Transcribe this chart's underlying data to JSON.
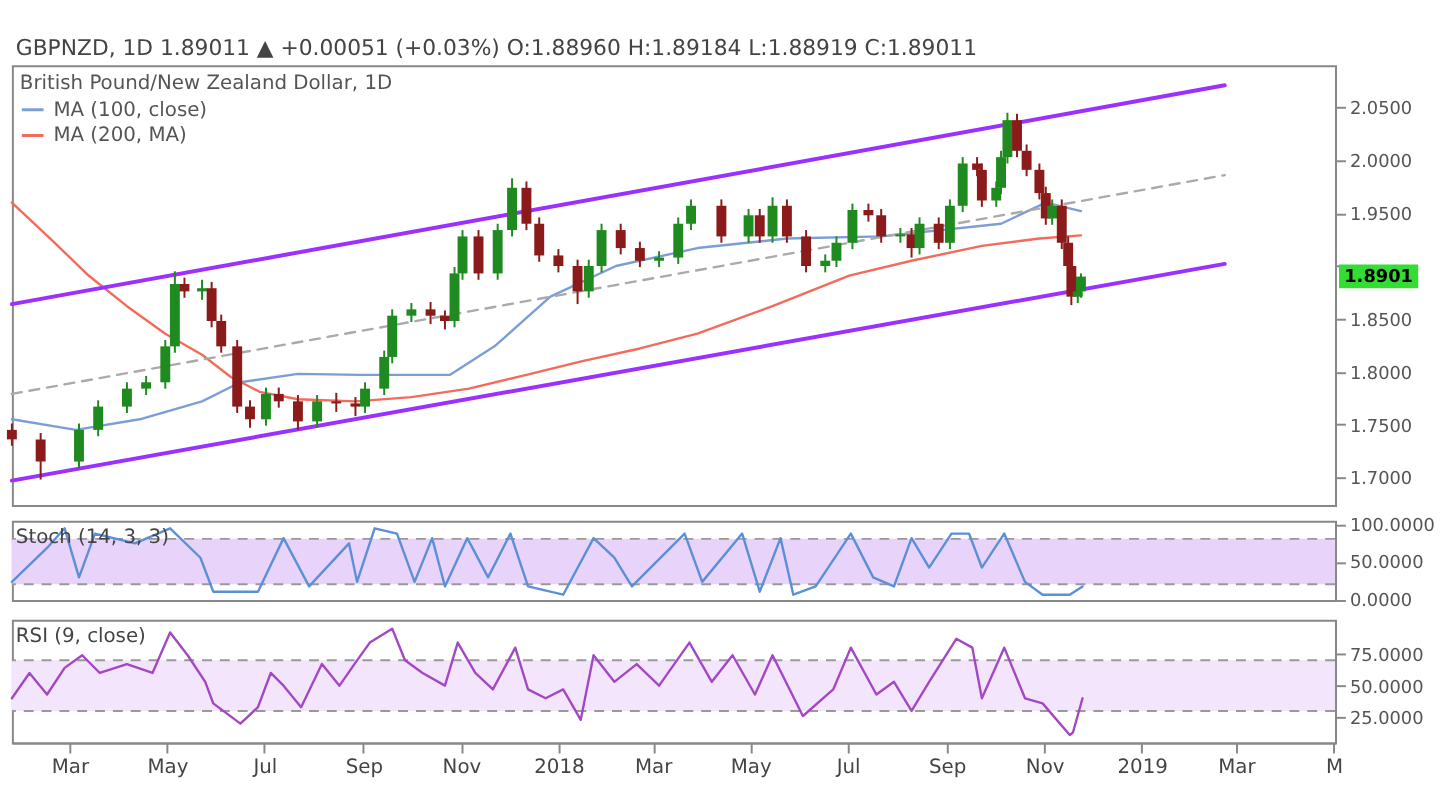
{
  "chart_data": [
    {
      "type": "candlestick",
      "title": "GBPNZD, 1D  1.89011 ▲ +0.00051 (+0.03%)  O:1.88960 H:1.89184 L:1.88919 C:1.89011",
      "subtitle": "British Pound/New Zealand Dollar, 1D",
      "x": [
        "2017-01-24",
        "2017-02-11",
        "2017-03-07",
        "2017-03-19",
        "2017-04-06",
        "2017-04-18",
        "2017-04-30",
        "2017-05-06",
        "2017-05-12",
        "2017-05-23",
        "2017-05-29",
        "2017-06-04",
        "2017-06-14",
        "2017-06-22",
        "2017-07-02",
        "2017-07-10",
        "2017-07-22",
        "2017-08-03",
        "2017-08-15",
        "2017-08-27",
        "2017-09-02",
        "2017-09-14",
        "2017-09-19",
        "2017-10-01",
        "2017-10-13",
        "2017-10-22",
        "2017-10-28",
        "2017-11-02",
        "2017-11-12",
        "2017-11-24",
        "2017-12-03",
        "2017-12-12",
        "2017-12-20",
        "2018-01-01",
        "2018-01-13",
        "2018-01-20",
        "2018-01-28",
        "2018-02-09",
        "2018-02-21",
        "2018-03-05",
        "2018-03-17",
        "2018-03-25",
        "2018-04-13",
        "2018-04-30",
        "2018-05-07",
        "2018-05-15",
        "2018-05-24",
        "2018-06-05",
        "2018-06-17",
        "2018-06-24",
        "2018-07-04",
        "2018-07-14",
        "2018-07-22",
        "2018-08-03",
        "2018-08-10",
        "2018-08-15",
        "2018-08-27",
        "2018-09-03",
        "2018-09-11",
        "2018-09-20",
        "2018-09-23",
        "2018-10-02",
        "2018-10-05",
        "2018-10-09",
        "2018-10-15",
        "2018-10-21",
        "2018-10-29",
        "2018-11-02",
        "2018-11-06",
        "2018-11-12",
        "2018-11-16",
        "2018-11-18",
        "2018-11-22",
        "2018-11-24"
      ],
      "ohlc": [
        [
          1.745,
          1.751,
          1.73,
          1.736
        ],
        [
          1.736,
          1.742,
          1.698,
          1.715
        ],
        [
          1.715,
          1.751,
          1.709,
          1.745
        ],
        [
          1.745,
          1.773,
          1.739,
          1.767
        ],
        [
          1.767,
          1.79,
          1.761,
          1.784
        ],
        [
          1.784,
          1.796,
          1.778,
          1.79
        ],
        [
          1.79,
          1.83,
          1.784,
          1.824
        ],
        [
          1.824,
          1.895,
          1.818,
          1.883
        ],
        [
          1.883,
          1.889,
          1.87,
          1.876
        ],
        [
          1.876,
          1.887,
          1.868,
          1.879
        ],
        [
          1.879,
          1.885,
          1.842,
          1.848
        ],
        [
          1.848,
          1.854,
          1.818,
          1.824
        ],
        [
          1.824,
          1.83,
          1.761,
          1.767
        ],
        [
          1.767,
          1.773,
          1.747,
          1.755
        ],
        [
          1.755,
          1.785,
          1.749,
          1.779
        ],
        [
          1.779,
          1.785,
          1.766,
          1.772
        ],
        [
          1.772,
          1.778,
          1.745,
          1.753
        ],
        [
          1.753,
          1.778,
          1.747,
          1.772
        ],
        [
          1.772,
          1.78,
          1.762,
          1.77
        ],
        [
          1.77,
          1.776,
          1.758,
          1.767
        ],
        [
          1.767,
          1.79,
          1.761,
          1.784
        ],
        [
          1.784,
          1.82,
          1.778,
          1.814
        ],
        [
          1.814,
          1.859,
          1.808,
          1.853
        ],
        [
          1.853,
          1.865,
          1.847,
          1.859
        ],
        [
          1.859,
          1.866,
          1.845,
          1.853
        ],
        [
          1.853,
          1.858,
          1.84,
          1.848
        ],
        [
          1.848,
          1.899,
          1.842,
          1.893
        ],
        [
          1.893,
          1.934,
          1.887,
          1.928
        ],
        [
          1.928,
          1.934,
          1.887,
          1.893
        ],
        [
          1.893,
          1.94,
          1.887,
          1.934
        ],
        [
          1.934,
          1.983,
          1.928,
          1.974
        ],
        [
          1.974,
          1.98,
          1.934,
          1.94
        ],
        [
          1.94,
          1.946,
          1.904,
          1.91
        ],
        [
          1.91,
          1.916,
          1.894,
          1.9
        ],
        [
          1.9,
          1.906,
          1.864,
          1.876
        ],
        [
          1.876,
          1.906,
          1.87,
          1.9
        ],
        [
          1.9,
          1.94,
          1.894,
          1.934
        ],
        [
          1.934,
          1.94,
          1.911,
          1.917
        ],
        [
          1.917,
          1.923,
          1.899,
          1.905
        ],
        [
          1.905,
          1.914,
          1.899,
          1.908
        ],
        [
          1.908,
          1.946,
          1.902,
          1.94
        ],
        [
          1.94,
          1.963,
          1.934,
          1.957
        ],
        [
          1.957,
          1.963,
          1.922,
          1.928
        ],
        [
          1.928,
          1.954,
          1.922,
          1.948
        ],
        [
          1.948,
          1.954,
          1.922,
          1.928
        ],
        [
          1.928,
          1.965,
          1.922,
          1.957
        ],
        [
          1.957,
          1.963,
          1.922,
          1.928
        ],
        [
          1.928,
          1.934,
          1.894,
          1.9
        ],
        [
          1.9,
          1.911,
          1.894,
          1.905
        ],
        [
          1.905,
          1.928,
          1.899,
          1.922
        ],
        [
          1.922,
          1.959,
          1.916,
          1.953
        ],
        [
          1.953,
          1.959,
          1.942,
          1.948
        ],
        [
          1.948,
          1.954,
          1.922,
          1.928
        ],
        [
          1.928,
          1.936,
          1.922,
          1.93
        ],
        [
          1.93,
          1.936,
          1.908,
          1.917
        ],
        [
          1.917,
          1.946,
          1.911,
          1.94
        ],
        [
          1.94,
          1.946,
          1.916,
          1.922
        ],
        [
          1.922,
          1.963,
          1.916,
          1.957
        ],
        [
          1.957,
          2.003,
          1.951,
          1.997
        ],
        [
          1.997,
          2.003,
          1.985,
          1.991
        ],
        [
          1.991,
          1.997,
          1.956,
          1.962
        ],
        [
          1.962,
          1.98,
          1.956,
          1.974
        ],
        [
          1.974,
          2.009,
          1.968,
          2.003
        ],
        [
          2.003,
          2.045,
          1.997,
          2.038
        ],
        [
          2.038,
          2.044,
          2.003,
          2.009
        ],
        [
          2.009,
          2.015,
          1.985,
          1.991
        ],
        [
          1.991,
          1.997,
          1.963,
          1.969
        ],
        [
          1.969,
          1.975,
          1.939,
          1.945
        ],
        [
          1.945,
          1.963,
          1.939,
          1.957
        ],
        [
          1.957,
          1.963,
          1.916,
          1.922
        ],
        [
          1.922,
          1.928,
          1.894,
          1.9
        ],
        [
          1.9,
          1.906,
          1.863,
          1.871
        ],
        [
          1.871,
          1.882,
          1.865,
          1.876
        ],
        [
          1.876,
          1.893,
          1.87,
          1.89
        ]
      ],
      "colors": [
        "#8b1a1a",
        "#8b1a1a",
        "#1f8a1f",
        "#1f8a1f",
        "#1f8a1f",
        "#1f8a1f",
        "#1f8a1f",
        "#1f8a1f",
        "#8b1a1a",
        "#1f8a1f",
        "#8b1a1a",
        "#8b1a1a",
        "#8b1a1a",
        "#8b1a1a",
        "#1f8a1f",
        "#8b1a1a",
        "#8b1a1a",
        "#1f8a1f",
        "#8b1a1a",
        "#8b1a1a",
        "#1f8a1f",
        "#1f8a1f",
        "#1f8a1f",
        "#1f8a1f",
        "#8b1a1a",
        "#8b1a1a",
        "#1f8a1f",
        "#1f8a1f",
        "#8b1a1a",
        "#1f8a1f",
        "#1f8a1f",
        "#8b1a1a",
        "#8b1a1a",
        "#8b1a1a",
        "#8b1a1a",
        "#1f8a1f",
        "#1f8a1f",
        "#8b1a1a",
        "#8b1a1a",
        "#1f8a1f",
        "#1f8a1f",
        "#1f8a1f",
        "#8b1a1a",
        "#1f8a1f",
        "#8b1a1a",
        "#1f8a1f",
        "#8b1a1a",
        "#8b1a1a",
        "#1f8a1f",
        "#1f8a1f",
        "#1f8a1f",
        "#8b1a1a",
        "#8b1a1a",
        "#1f8a1f",
        "#8b1a1a",
        "#1f8a1f",
        "#8b1a1a",
        "#1f8a1f",
        "#1f8a1f",
        "#8b1a1a",
        "#8b1a1a",
        "#1f8a1f",
        "#1f8a1f",
        "#1f8a1f",
        "#8b1a1a",
        "#8b1a1a",
        "#8b1a1a",
        "#8b1a1a",
        "#1f8a1f",
        "#8b1a1a",
        "#8b1a1a",
        "#8b1a1a",
        "#1f8a1f",
        "#1f8a1f"
      ],
      "series": [
        {
          "type": "line",
          "name": "MA (100, close)",
          "color": "#7b9fd4",
          "x": [
            "2017-01-24",
            "2017-03-05",
            "2017-04-14",
            "2017-05-23",
            "2017-06-16",
            "2017-07-22",
            "2017-08-30",
            "2017-10-25",
            "2017-11-22",
            "2017-12-27",
            "2018-02-06",
            "2018-03-29",
            "2018-05-24",
            "2018-07-22",
            "2018-10-05",
            "2018-11-02",
            "2018-11-24"
          ],
          "values": [
            1.755,
            1.745,
            1.755,
            1.772,
            1.79,
            1.798,
            1.797,
            1.797,
            1.824,
            1.871,
            1.9,
            1.917,
            1.926,
            1.928,
            1.94,
            1.96,
            1.952
          ]
        },
        {
          "type": "line",
          "name": "MA (200, MA)",
          "color": "#f26b5b",
          "x": [
            "2017-01-24",
            "2017-02-17",
            "2017-03-13",
            "2017-04-06",
            "2017-04-30",
            "2017-05-23",
            "2017-06-10",
            "2017-06-28",
            "2017-07-22",
            "2017-08-27",
            "2017-10-01",
            "2017-11-06",
            "2017-12-12",
            "2018-01-16",
            "2018-02-21",
            "2018-03-29",
            "2018-05-15",
            "2018-07-02",
            "2018-08-10",
            "2018-09-23",
            "2018-10-29",
            "2018-11-24"
          ],
          "values": [
            1.96,
            1.926,
            1.891,
            1.862,
            1.836,
            1.816,
            1.795,
            1.781,
            1.774,
            1.772,
            1.776,
            1.784,
            1.797,
            1.81,
            1.822,
            1.836,
            1.862,
            1.891,
            1.905,
            1.919,
            1.926,
            1.929
          ]
        },
        {
          "type": "line",
          "color": "#9b30ff",
          "x": [
            "2017-01-24",
            "2019-02-22"
          ],
          "values": [
            1.864,
            2.071
          ]
        },
        {
          "type": "line",
          "color": "#9b30ff",
          "x": [
            "2017-01-24",
            "2019-02-22"
          ],
          "values": [
            1.697,
            1.902
          ]
        },
        {
          "type": "line",
          "color": "#aaaaaa",
          "line_style": "dashed",
          "x": [
            "2017-01-24",
            "2019-02-22"
          ],
          "values": [
            1.779,
            1.986
          ]
        }
      ],
      "annotations": [
        {
          "text": "1.8901",
          "y": 1.8901
        }
      ],
      "legend": "top left",
      "tick_labels": "y",
      "xlim": [
        "2017-01-24",
        "2019-05-02"
      ],
      "ylim": [
        1.674,
        2.09
      ],
      "yticks": [
        {
          "value": 1.7,
          "label": "1.7000"
        },
        {
          "value": 1.75,
          "label": "1.7500"
        },
        {
          "value": 1.8,
          "label": "1.8000"
        },
        {
          "value": 1.85,
          "label": "1.8500"
        },
        {
          "value": 1.9,
          "label": null
        },
        {
          "value": 1.95,
          "label": "1.9500"
        },
        {
          "value": 2.0,
          "label": "2.0000"
        },
        {
          "value": 2.05,
          "label": "2.0500"
        }
      ]
    },
    {
      "type": "line",
      "title": "Stoch (14, 3, 3)",
      "series": [
        {
          "type": "line",
          "color": "#5b8fd6",
          "x": [
            "2017-01-24",
            "2017-02-15",
            "2017-02-26",
            "2017-03-07",
            "2017-03-17",
            "2017-04-11",
            "2017-05-03",
            "2017-05-22",
            "2017-05-30",
            "2017-06-27",
            "2017-07-13",
            "2017-07-29",
            "2017-08-23",
            "2017-08-28",
            "2017-09-08",
            "2017-09-22",
            "2017-10-03",
            "2017-10-14",
            "2017-10-22",
            "2017-11-05",
            "2017-11-18",
            "2017-12-02",
            "2017-12-13",
            "2018-01-04",
            "2018-01-23",
            "2018-02-05",
            "2018-02-16",
            "2018-03-21",
            "2018-04-01",
            "2018-04-26",
            "2018-05-07",
            "2018-05-20",
            "2018-05-28",
            "2018-06-11",
            "2018-07-03",
            "2018-07-17",
            "2018-07-30",
            "2018-08-10",
            "2018-08-21",
            "2018-09-04",
            "2018-09-15",
            "2018-09-23",
            "2018-10-07",
            "2018-10-20",
            "2018-10-31",
            "2018-11-17",
            "2018-11-25"
          ],
          "values": [
            23,
            68,
            94,
            29,
            87,
            74,
            94,
            55,
            10,
            10,
            81,
            17,
            74,
            23,
            94,
            87,
            23,
            81,
            17,
            81,
            29,
            87,
            17,
            6,
            81,
            55,
            17,
            87,
            23,
            87,
            10,
            81,
            6,
            17,
            87,
            29,
            17,
            81,
            42,
            87,
            87,
            42,
            87,
            23,
            6,
            6,
            17
          ]
        }
      ],
      "bands": [
        {
          "axis": "y",
          "from": 20,
          "to": 80,
          "color": "#e8d4fb"
        }
      ],
      "ref_lines": [
        {
          "axis": "y",
          "value": 20,
          "color": "#999999",
          "line_style": "dashed"
        },
        {
          "axis": "y",
          "value": 80,
          "color": "#999999",
          "line_style": "dashed"
        }
      ],
      "tick_labels": "y",
      "xlim": [
        "2017-01-24",
        "2019-05-02"
      ],
      "ylim": [
        -1,
        104
      ],
      "yticks": [
        {
          "value": 0,
          "label": "0.0000"
        },
        {
          "value": 50,
          "label": "50.0000"
        },
        {
          "value": 100,
          "label": "100.0000"
        }
      ]
    },
    {
      "type": "line",
      "title": "RSI (9, close)",
      "series": [
        {
          "type": "line",
          "color": "#a347c4",
          "x": [
            "2017-01-24",
            "2017-02-04",
            "2017-02-15",
            "2017-02-26",
            "2017-03-09",
            "2017-03-20",
            "2017-04-06",
            "2017-04-22",
            "2017-05-03",
            "2017-05-14",
            "2017-05-25",
            "2017-05-30",
            "2017-06-16",
            "2017-06-27",
            "2017-07-05",
            "2017-07-13",
            "2017-07-24",
            "2017-08-06",
            "2017-08-17",
            "2017-08-28",
            "2017-09-05",
            "2017-09-19",
            "2017-09-27",
            "2017-10-08",
            "2017-10-22",
            "2017-10-30",
            "2017-11-10",
            "2017-11-21",
            "2017-12-05",
            "2017-12-13",
            "2017-12-24",
            "2018-01-04",
            "2018-01-15",
            "2018-01-23",
            "2018-02-05",
            "2018-02-19",
            "2018-03-05",
            "2018-03-24",
            "2018-04-07",
            "2018-04-20",
            "2018-05-04",
            "2018-05-15",
            "2018-06-03",
            "2018-06-22",
            "2018-07-03",
            "2018-07-19",
            "2018-07-30",
            "2018-08-10",
            "2018-08-21",
            "2018-09-07",
            "2018-09-17",
            "2018-09-23",
            "2018-10-07",
            "2018-10-20",
            "2018-10-31",
            "2018-11-17",
            "2018-11-19",
            "2018-11-25"
          ],
          "values": [
            40,
            60,
            43,
            64,
            74,
            60,
            67,
            60,
            92,
            74,
            53,
            36,
            20,
            33,
            60,
            50,
            33,
            67,
            50,
            70,
            84,
            95,
            70,
            60,
            50,
            84,
            60,
            47,
            80,
            47,
            40,
            47,
            23,
            74,
            53,
            67,
            50,
            84,
            53,
            74,
            43,
            74,
            26,
            47,
            80,
            43,
            53,
            30,
            53,
            87,
            80,
            40,
            80,
            40,
            36,
            11,
            13,
            40
          ]
        }
      ],
      "bands": [
        {
          "axis": "y",
          "from": 30,
          "to": 70,
          "color": "#f3e6fc"
        }
      ],
      "ref_lines": [
        {
          "axis": "y",
          "value": 30,
          "color": "#999999",
          "line_style": "dashed"
        },
        {
          "axis": "y",
          "value": 70,
          "color": "#999999",
          "line_style": "dashed"
        }
      ],
      "xlim": [
        "2017-01-24",
        "2019-05-02"
      ],
      "ylim": [
        5,
        102
      ],
      "yticks": [
        {
          "value": 25,
          "label": "25.0000"
        },
        {
          "value": 50,
          "label": "50.0000"
        },
        {
          "value": 75,
          "label": "75.0000"
        }
      ],
      "xticks": [
        {
          "value": "2017-03-01",
          "label": "Mar"
        },
        {
          "value": "2017-05-01",
          "label": "May"
        },
        {
          "value": "2017-07-01",
          "label": "Jul"
        },
        {
          "value": "2017-09-01",
          "label": "Sep"
        },
        {
          "value": "2017-11-01",
          "label": "Nov"
        },
        {
          "value": "2018-01-01",
          "label": "2018"
        },
        {
          "value": "2018-03-01",
          "label": "Mar"
        },
        {
          "value": "2018-05-01",
          "label": "May"
        },
        {
          "value": "2018-07-01",
          "label": "Jul"
        },
        {
          "value": "2018-09-01",
          "label": "Sep"
        },
        {
          "value": "2018-11-01",
          "label": "Nov"
        },
        {
          "value": "2019-01-01",
          "label": "2019"
        },
        {
          "value": "2019-03-01",
          "label": "Mar"
        },
        {
          "value": "2019-05-01",
          "label": "M"
        }
      ]
    }
  ]
}
